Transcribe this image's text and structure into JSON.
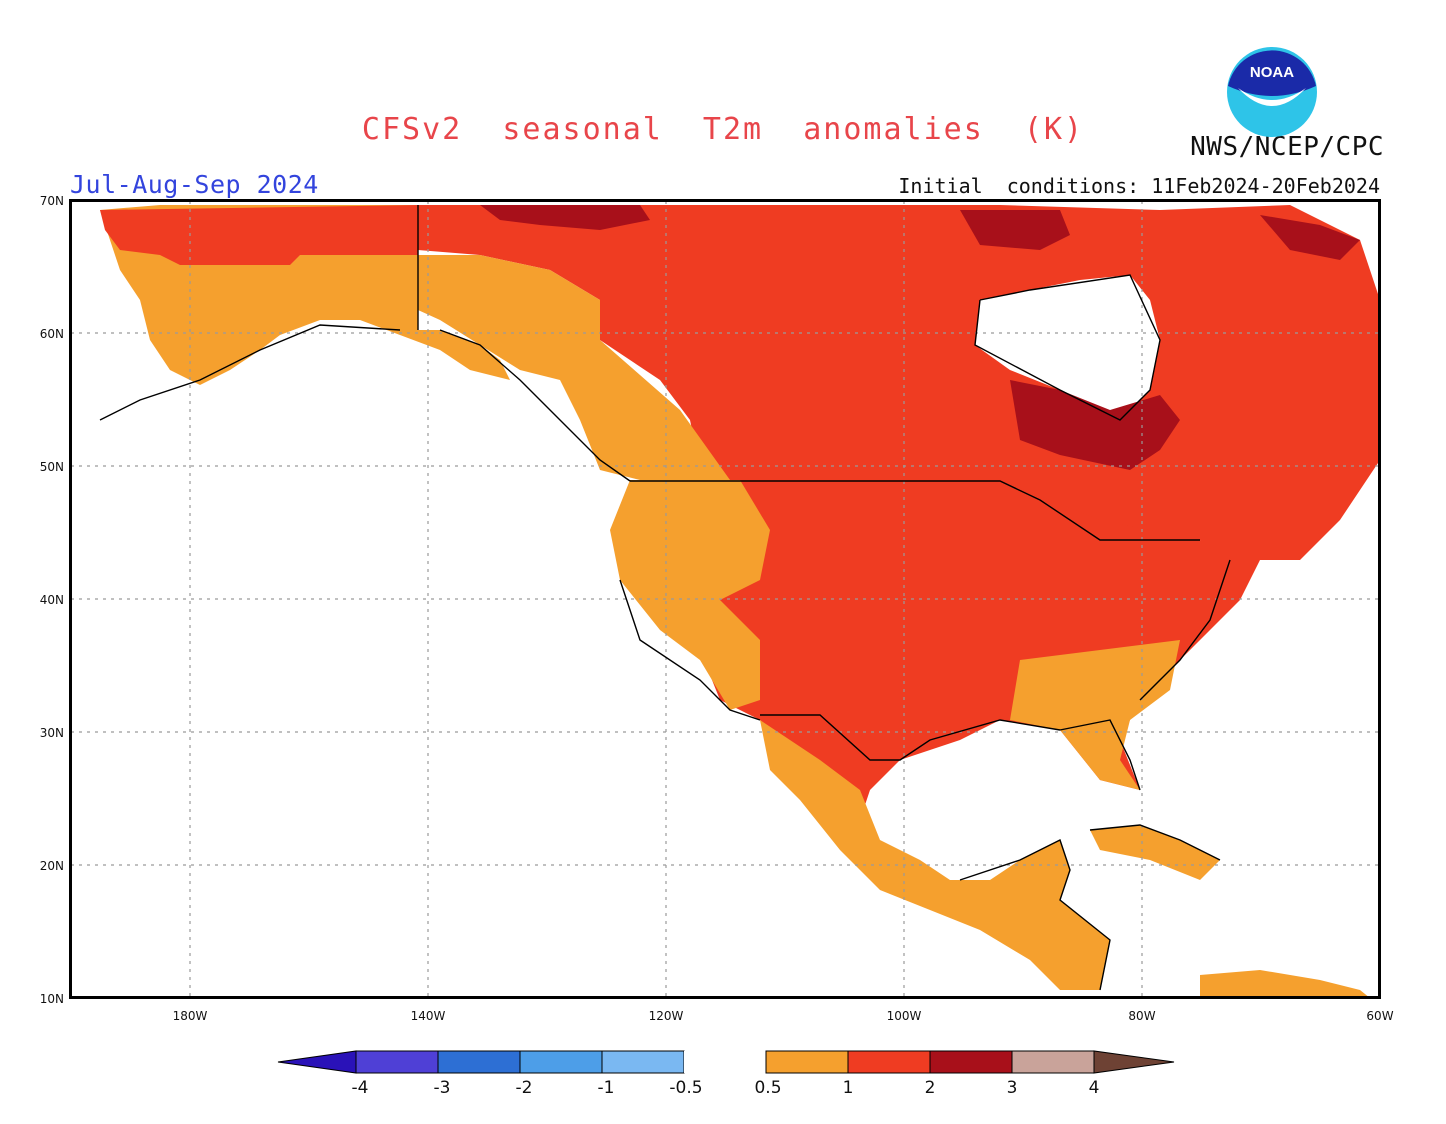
{
  "header": {
    "title": "CFSv2  seasonal  T2m  anomalies  (K)",
    "agency": "NWS/NCEP/CPC",
    "season": "Jul-Aug-Sep 2024",
    "initial_conditions": "Initial  conditions: 11Feb2024-20Feb2024",
    "logo_text": "NOAA"
  },
  "map": {
    "lat_labels": [
      "70N",
      "60N",
      "50N",
      "40N",
      "30N",
      "20N",
      "10N"
    ],
    "lon_labels": [
      "180W",
      "140W",
      "120W",
      "100W",
      "80W",
      "60W"
    ]
  },
  "legend": {
    "labels": [
      "-4",
      "-3",
      "-2",
      "-1",
      "-0.5",
      "0.5",
      "1",
      "2",
      "3",
      "4"
    ],
    "colors": [
      "#2a12b8",
      "#4f40d6",
      "#2d6fd4",
      "#4d9ee8",
      "#7ab8f2",
      "#ffffff",
      "#f5a02e",
      "#ef3c22",
      "#a8101a",
      "#c9a39a",
      "#6e4234"
    ]
  }
}
